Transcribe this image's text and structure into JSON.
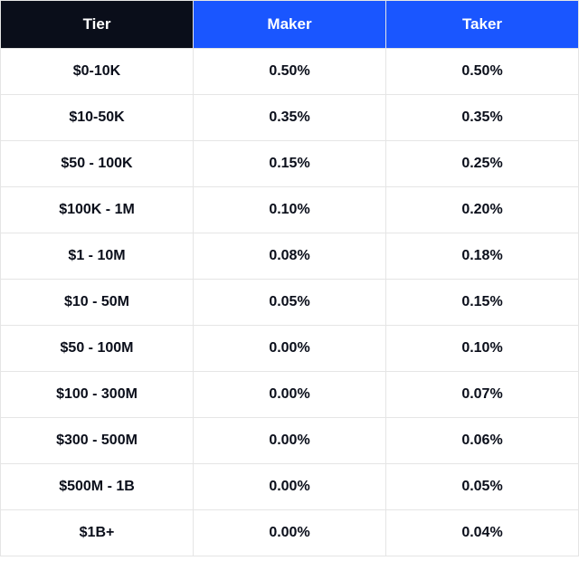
{
  "table": {
    "type": "table",
    "columns": [
      {
        "key": "tier",
        "label": "Tier",
        "header_bg": "#0a0e1a",
        "header_color": "#ffffff"
      },
      {
        "key": "maker",
        "label": "Maker",
        "header_bg": "#1a56ff",
        "header_color": "#ffffff"
      },
      {
        "key": "taker",
        "label": "Taker",
        "header_bg": "#1a56ff",
        "header_color": "#ffffff"
      }
    ],
    "rows": [
      {
        "tier": "$0-10K",
        "maker": "0.50%",
        "taker": "0.50%"
      },
      {
        "tier": "$10-50K",
        "maker": "0.35%",
        "taker": "0.35%"
      },
      {
        "tier": "$50 - 100K",
        "maker": "0.15%",
        "taker": "0.25%"
      },
      {
        "tier": "$100K - 1M",
        "maker": "0.10%",
        "taker": "0.20%"
      },
      {
        "tier": "$1 - 10M",
        "maker": "0.08%",
        "taker": "0.18%"
      },
      {
        "tier": "$10 - 50M",
        "maker": "0.05%",
        "taker": "0.15%"
      },
      {
        "tier": "$50 - 100M",
        "maker": "0.00%",
        "taker": "0.10%"
      },
      {
        "tier": "$100 - 300M",
        "maker": "0.00%",
        "taker": "0.07%"
      },
      {
        "tier": "$300 - 500M",
        "maker": "0.00%",
        "taker": "0.06%"
      },
      {
        "tier": "$500M - 1B",
        "maker": "0.00%",
        "taker": "0.05%"
      },
      {
        "tier": "$1B+",
        "maker": "0.00%",
        "taker": "0.04%"
      }
    ],
    "style": {
      "border_color": "#e5e5e5",
      "cell_bg": "#ffffff",
      "text_color": "#0a0e1a",
      "header_font_size": 17,
      "cell_font_size": 16,
      "cell_font_weight": 600
    }
  }
}
